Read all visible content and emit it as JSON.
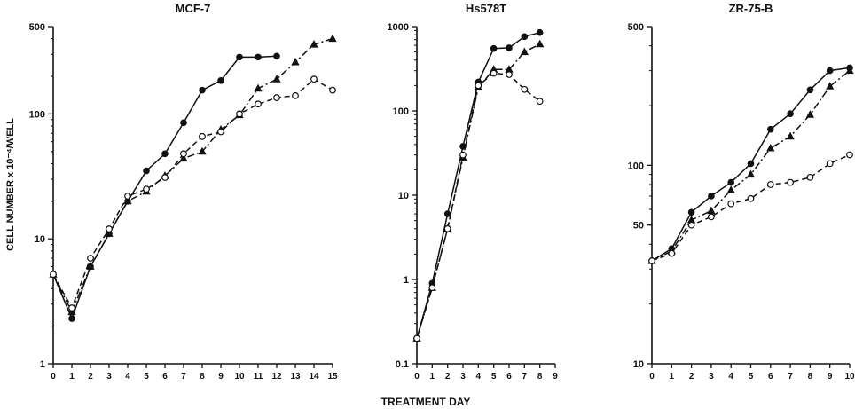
{
  "figure": {
    "ylabel": "CELL NUMBER x 10⁻⁴/WELL",
    "xlabel": "TREATMENT DAY"
  },
  "chart_data": [
    {
      "type": "line",
      "title": "MCF-7",
      "yscale": "log",
      "ylim": [
        1,
        500
      ],
      "xlim": [
        0,
        15
      ],
      "y_ticks": [
        1,
        10,
        100,
        500
      ],
      "x_ticks": [
        0,
        1,
        2,
        3,
        4,
        5,
        6,
        7,
        8,
        9,
        10,
        11,
        12,
        13,
        14,
        15
      ],
      "series": [
        {
          "marker": "filled-circle",
          "linestyle": "solid",
          "x": [
            0,
            1,
            2,
            3,
            4,
            5,
            6,
            7,
            8,
            9,
            10,
            11,
            12
          ],
          "y": [
            5.2,
            2.3,
            6,
            11,
            20,
            35,
            48,
            85,
            155,
            185,
            285,
            285,
            290
          ]
        },
        {
          "marker": "filled-triangle",
          "linestyle": "dashdot",
          "x": [
            0,
            1,
            2,
            3,
            4,
            5,
            6,
            7,
            8,
            9,
            10,
            11,
            12,
            13,
            14,
            15
          ],
          "y": [
            5.2,
            2.6,
            6,
            11,
            20,
            24,
            32,
            44,
            50,
            75,
            98,
            160,
            190,
            260,
            360,
            400
          ]
        },
        {
          "marker": "open-circle",
          "linestyle": "dashed",
          "x": [
            0,
            1,
            2,
            3,
            4,
            5,
            6,
            7,
            8,
            9,
            10,
            11,
            12,
            13,
            14,
            15
          ],
          "y": [
            5.2,
            2.8,
            7,
            12,
            22,
            25,
            31,
            48,
            66,
            72,
            100,
            120,
            135,
            140,
            190,
            155
          ]
        }
      ]
    },
    {
      "type": "line",
      "title": "Hs578T",
      "yscale": "log",
      "ylim": [
        0.1,
        1000
      ],
      "xlim": [
        0,
        9
      ],
      "y_ticks": [
        0.1,
        1,
        10,
        100,
        1000
      ],
      "x_ticks": [
        0,
        1,
        2,
        3,
        4,
        5,
        6,
        7,
        8,
        9
      ],
      "series": [
        {
          "marker": "filled-circle",
          "linestyle": "solid",
          "x": [
            0,
            1,
            2,
            3,
            4,
            5,
            6,
            7,
            8
          ],
          "y": [
            0.2,
            0.9,
            6,
            38,
            220,
            550,
            560,
            760,
            850
          ]
        },
        {
          "marker": "filled-triangle",
          "linestyle": "dashdot",
          "x": [
            0,
            1,
            2,
            3,
            4,
            5,
            6,
            7,
            8
          ],
          "y": [
            0.2,
            0.8,
            4,
            28,
            190,
            310,
            310,
            500,
            620
          ]
        },
        {
          "marker": "open-circle",
          "linestyle": "dashed",
          "x": [
            0,
            1,
            2,
            3,
            4,
            5,
            6,
            7,
            8
          ],
          "y": [
            0.2,
            0.8,
            4,
            30,
            200,
            280,
            270,
            180,
            130
          ]
        }
      ]
    },
    {
      "type": "line",
      "title": "ZR-75-B",
      "yscale": "log",
      "ylim": [
        10,
        500
      ],
      "xlim": [
        0,
        10
      ],
      "y_ticks": [
        10,
        50,
        100,
        500
      ],
      "x_ticks": [
        0,
        1,
        2,
        3,
        4,
        5,
        6,
        7,
        8,
        9,
        10
      ],
      "series": [
        {
          "marker": "filled-circle",
          "linestyle": "solid",
          "x": [
            0,
            1,
            2,
            3,
            4,
            5,
            6,
            7,
            8,
            9,
            10
          ],
          "y": [
            33,
            38,
            58,
            70,
            82,
            102,
            152,
            182,
            240,
            300,
            310
          ]
        },
        {
          "marker": "filled-triangle",
          "linestyle": "dashdot",
          "x": [
            0,
            1,
            2,
            3,
            4,
            5,
            6,
            7,
            8,
            9,
            10
          ],
          "y": [
            33,
            37,
            53,
            59,
            75,
            90,
            122,
            140,
            180,
            250,
            300
          ]
        },
        {
          "marker": "open-circle",
          "linestyle": "dashed",
          "x": [
            0,
            1,
            2,
            3,
            4,
            5,
            6,
            7,
            8,
            9,
            10
          ],
          "y": [
            33,
            36,
            50,
            55,
            64,
            68,
            80,
            82,
            87,
            102,
            113
          ]
        }
      ]
    }
  ]
}
